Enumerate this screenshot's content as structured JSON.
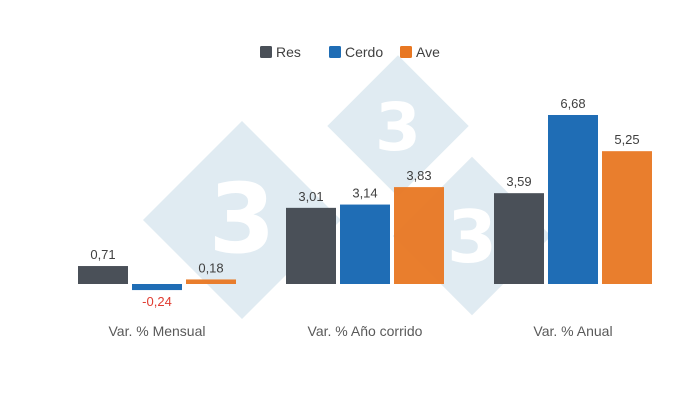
{
  "chart_data": {
    "type": "bar",
    "categories": [
      "Var. % Mensual",
      "Var. % Año corrido",
      "Var. % Anual"
    ],
    "series": [
      {
        "name": "Res",
        "color": "#4a5058",
        "values": [
          0.71,
          3.01,
          3.59
        ],
        "labels": [
          "0,71",
          "3,01",
          "3,59"
        ]
      },
      {
        "name": "Cerdo",
        "color": "#1f6db5",
        "values": [
          -0.24,
          3.14,
          6.68
        ],
        "labels": [
          "-0,24",
          "3,14",
          "6,68"
        ]
      },
      {
        "name": "Ave",
        "color": "#e87722",
        "values": [
          0.18,
          3.83,
          5.25
        ],
        "labels": [
          "0,18",
          "3,83",
          "5,25"
        ]
      }
    ],
    "negative_label_color": "#e03c31",
    "positive_label_color": "#404040",
    "ylim": [
      -0.5,
      7.0
    ],
    "grid": false,
    "legend_position": "top-center",
    "title": "",
    "xlabel": "",
    "ylabel": ""
  },
  "watermark": {
    "digit": "3",
    "color": "#d6e4ee"
  }
}
